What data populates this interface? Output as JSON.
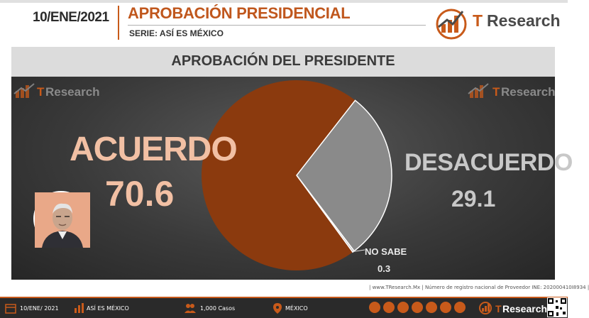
{
  "header": {
    "date": "10/ENE/2021",
    "title": "APROBACIÓN PRESIDENCIAL",
    "subtitle": "SERIE: ASÍ ES MÉXICO",
    "brand_t": "T",
    "brand_rest": "Research"
  },
  "watermark": {
    "t": "T",
    "rest": "Research"
  },
  "chart_data": {
    "type": "pie",
    "title": "APROBACIÓN DEL PRESIDENTE",
    "slices": [
      {
        "name": "ACUERDO",
        "value": 70.6,
        "value_label": "70.6",
        "color": "#8b3a0e"
      },
      {
        "name": "DESACUERDO",
        "value": 29.1,
        "value_label": "29.1",
        "color": "#8a8a8a"
      },
      {
        "name": "NO SABE",
        "value": 0.3,
        "value_label": "0.3",
        "color": "#b9b9b9"
      }
    ]
  },
  "source": "| www.TResearch.Mx | Número de registro nacional de Proveedor INE: 202000410I8934 |",
  "footer": {
    "date": "10/ENE/ 2021",
    "series": "ASÍ ES MÉXICO",
    "cases": "1,000 Casos",
    "country": "MÉXICO",
    "brand_t": "T",
    "brand_rest": "Research"
  },
  "colors": {
    "accent": "#c85a1a",
    "acuerdo_text": "#f2c0a4",
    "desacuerdo_text": "#c8c8c8"
  }
}
